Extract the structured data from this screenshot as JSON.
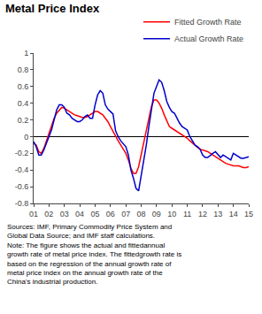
{
  "chart_data": {
    "type": "line",
    "title": "Metal Price Index",
    "categories": [
      "01",
      null,
      null,
      null,
      null,
      null,
      "02",
      null,
      null,
      null,
      null,
      null,
      "03",
      null,
      null,
      null,
      null,
      null,
      "04",
      null,
      null,
      null,
      null,
      null,
      "05",
      null,
      null,
      null,
      null,
      null,
      "06",
      null,
      null,
      null,
      null,
      null,
      "07",
      null,
      null,
      null,
      null,
      null,
      "08",
      null,
      null,
      null,
      null,
      null,
      "09",
      null,
      null,
      null,
      null,
      null,
      "10",
      null,
      null,
      null,
      null,
      null,
      "11",
      null,
      null,
      null,
      null,
      null,
      "12",
      null,
      null,
      null,
      null,
      null,
      "13",
      null,
      null,
      null,
      null,
      null,
      "14",
      null,
      null,
      null,
      null,
      null,
      "15"
    ],
    "series": [
      {
        "name": "Fitted Growth Rate",
        "color": "#FF0000",
        "values": [
          -0.08,
          -0.1,
          -0.18,
          -0.2,
          -0.14,
          -0.05,
          0.05,
          0.14,
          0.22,
          0.28,
          0.32,
          0.35,
          0.34,
          0.32,
          0.3,
          0.28,
          0.26,
          0.25,
          0.24,
          0.23,
          0.23,
          0.24,
          0.26,
          0.28,
          0.3,
          0.3,
          0.28,
          0.26,
          0.22,
          0.18,
          0.12,
          0.06,
          0.0,
          -0.05,
          -0.1,
          -0.15,
          -0.2,
          -0.28,
          -0.38,
          -0.44,
          -0.44,
          -0.36,
          -0.22,
          -0.08,
          0.08,
          0.22,
          0.36,
          0.44,
          0.44,
          0.4,
          0.34,
          0.26,
          0.18,
          0.12,
          0.1,
          0.08,
          0.06,
          0.04,
          0.02,
          0.0,
          -0.02,
          -0.05,
          -0.08,
          -0.11,
          -0.13,
          -0.15,
          -0.16,
          -0.17,
          -0.18,
          -0.2,
          -0.22,
          -0.24,
          -0.26,
          -0.28,
          -0.3,
          -0.32,
          -0.33,
          -0.34,
          -0.35,
          -0.35,
          -0.35,
          -0.36,
          -0.37,
          -0.37,
          -0.36
        ]
      },
      {
        "name": "Actual Growth Rate",
        "color": "#0000CC",
        "values": [
          -0.06,
          -0.12,
          -0.22,
          -0.22,
          -0.16,
          -0.08,
          0.0,
          0.08,
          0.2,
          0.32,
          0.38,
          0.38,
          0.35,
          0.28,
          0.26,
          0.22,
          0.2,
          0.18,
          0.18,
          0.2,
          0.24,
          0.26,
          0.22,
          0.22,
          0.38,
          0.5,
          0.55,
          0.52,
          0.38,
          0.33,
          0.3,
          0.27,
          0.07,
          0.0,
          -0.05,
          -0.08,
          -0.12,
          -0.22,
          -0.4,
          -0.5,
          -0.62,
          -0.65,
          -0.48,
          -0.28,
          -0.1,
          0.12,
          0.35,
          0.52,
          0.6,
          0.68,
          0.65,
          0.55,
          0.42,
          0.35,
          0.3,
          0.28,
          0.22,
          0.16,
          0.12,
          0.1,
          0.08,
          0.0,
          -0.05,
          -0.1,
          -0.12,
          -0.15,
          -0.22,
          -0.25,
          -0.25,
          -0.22,
          -0.2,
          -0.18,
          -0.22,
          -0.25,
          -0.22,
          -0.24,
          -0.26,
          -0.28,
          -0.2,
          -0.22,
          -0.24,
          -0.26,
          -0.26,
          -0.25,
          -0.24
        ]
      }
    ],
    "ylim": [
      -0.8,
      1.0
    ],
    "yticks": [
      -0.8,
      -0.6,
      -0.4,
      -0.2,
      0,
      0.2,
      0.4,
      0.6,
      0.8,
      1
    ],
    "grid": false,
    "legend": "upper right",
    "annotations": [
      "Sources: IMF, Primary Commodity Price System and\nGlobal Data Source; and IMF staff calculations.\nNote: The figure shows the actual and fittedannual\ngrowth rate of metal price index. The fittedgrowth rate is\nbased on the regression of the annual growth rate of\nmetal price index on the annual growth rate of the\nChina's industrial production."
    ]
  }
}
